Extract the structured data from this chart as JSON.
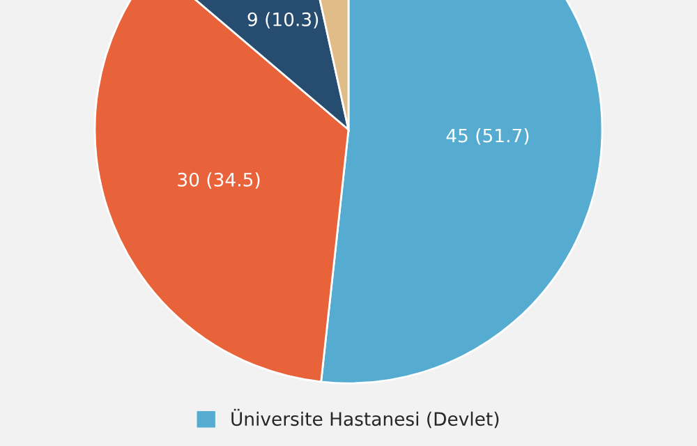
{
  "chart_data": {
    "type": "pie",
    "categories": [
      "Üniversite Hastanesi (Devlet)",
      null,
      null,
      null
    ],
    "values": [
      45,
      30,
      9,
      3
    ],
    "colors": [
      "#55acd0",
      "#e8623a",
      "#264d70",
      "#e0bc88"
    ],
    "value_labels": [
      "45 (51.7)",
      "30 (34.5)",
      "9 (10.3)",
      null
    ],
    "legend": "bottom"
  }
}
